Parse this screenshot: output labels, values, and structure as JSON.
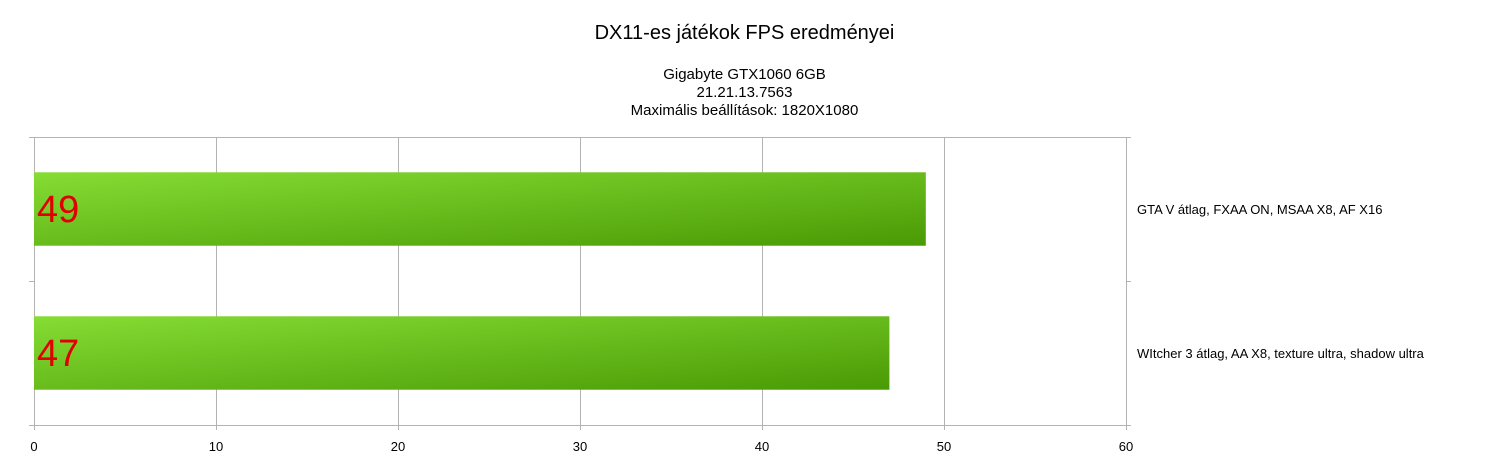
{
  "chart_data": {
    "type": "bar",
    "orientation": "horizontal",
    "title": "DX11-es játékok FPS eredményei",
    "subtitle_lines": [
      "Gigabyte GTX1060 6GB",
      "21.21.13.7563",
      "Maximális beállítások: 1820X1080"
    ],
    "categories": [
      "GTA V átlag, FXAA ON, MSAA X8, AF X16",
      "WItcher 3 átlag, AA X8, texture ultra, shadow ultra"
    ],
    "values": [
      49,
      47
    ],
    "value_labels": [
      "49",
      "47"
    ],
    "xlim": [
      0,
      60
    ],
    "x_ticks": [
      0,
      10,
      20,
      30,
      40,
      50,
      60
    ],
    "grid": true,
    "bar_color_start": "#86dd34",
    "bar_color_end": "#4a9a04",
    "label_color": "#e00000",
    "category_labels_position": "right",
    "xlabel": "",
    "ylabel": ""
  }
}
